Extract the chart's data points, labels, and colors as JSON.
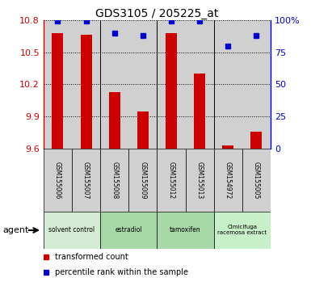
{
  "title": "GDS3105 / 205225_at",
  "samples": [
    "GSM155006",
    "GSM155007",
    "GSM155008",
    "GSM155009",
    "GSM155012",
    "GSM155013",
    "GSM154972",
    "GSM155005"
  ],
  "bar_values": [
    10.68,
    10.66,
    10.13,
    9.95,
    10.68,
    10.3,
    9.63,
    9.76
  ],
  "percentile_values": [
    99,
    99,
    90,
    88,
    99,
    99,
    80,
    88
  ],
  "ylim_left": [
    9.6,
    10.8
  ],
  "ylim_right": [
    0,
    100
  ],
  "yticks_left": [
    9.6,
    9.9,
    10.2,
    10.5,
    10.8
  ],
  "yticks_right": [
    0,
    25,
    50,
    75,
    100
  ],
  "ytick_labels_left": [
    "9.6",
    "9.9",
    "10.2",
    "10.5",
    "10.8"
  ],
  "ytick_labels_right": [
    "0",
    "25",
    "50",
    "75",
    "100%"
  ],
  "groups": [
    {
      "label": "solvent control",
      "indices": [
        0,
        1
      ],
      "color": "#d4ecd4"
    },
    {
      "label": "estradiol",
      "indices": [
        2,
        3
      ],
      "color": "#a8d8a8"
    },
    {
      "label": "tamoxifen",
      "indices": [
        4,
        5
      ],
      "color": "#a8d8a8"
    },
    {
      "label": "Cimicifuga\nracemosa extract",
      "indices": [
        6,
        7
      ],
      "color": "#c8f0c8"
    }
  ],
  "bar_color": "#cc0000",
  "dot_color": "#0000cc",
  "left_axis_color": "#cc0000",
  "right_axis_color": "#0000cc",
  "col_bg_color": "#d0d0d0",
  "background_color": "#ffffff",
  "agent_label": "agent",
  "legend_bar_label": "transformed count",
  "legend_dot_label": "percentile rank within the sample",
  "figsize": [
    3.85,
    3.54
  ],
  "dpi": 100
}
